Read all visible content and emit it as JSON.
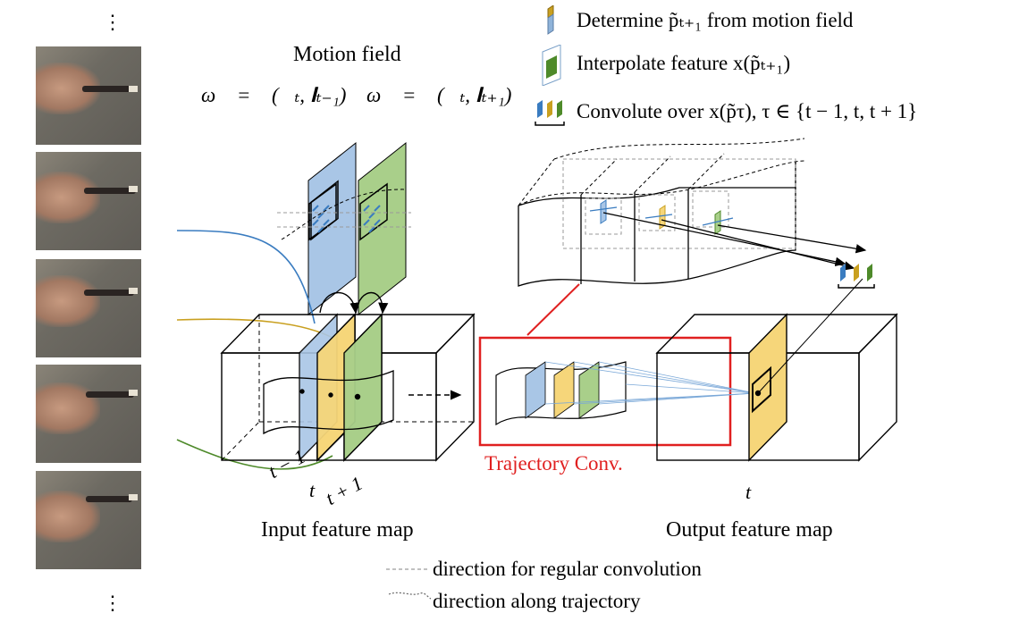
{
  "frames": {
    "count": 5,
    "top_dots": "⋮",
    "bottom_dots": "⋮"
  },
  "motion_field": {
    "title": "Motion field",
    "backward_eq": "ω⃖ = ℱ(𝐈ₜ, 𝐈ₜ₋₁)",
    "forward_eq": "ω⃗ = ℱ(𝐈ₜ, 𝐈ₜ₊₁)"
  },
  "legend": {
    "determine": "Determine p̃ₜ₊₁ from motion field",
    "interpolate": "Interpolate feature x(p̃ₜ₊₁)",
    "convolute": "Convolute over x(p̃τ), τ ∈ {t − 1, t, t + 1}"
  },
  "input_map": {
    "label": "Input feature map",
    "t_minus": "t − 1",
    "t": "t",
    "t_plus": "t + 1"
  },
  "output_map": {
    "label": "Output feature map",
    "t": "t"
  },
  "trajectory_conv": {
    "label": "Trajectory Conv."
  },
  "bottom_legend": {
    "regular": "direction for regular convolution",
    "trajectory": "direction along trajectory"
  },
  "colors": {
    "blue": "#a9c6e6",
    "yellow": "#f6d67a",
    "green": "#a9cf8a",
    "blue_line": "#3a7cc0",
    "yellow_line": "#c9a020",
    "green_line": "#4e8a2a",
    "red": "#e02020",
    "grey_dash": "#9a9a9a"
  }
}
